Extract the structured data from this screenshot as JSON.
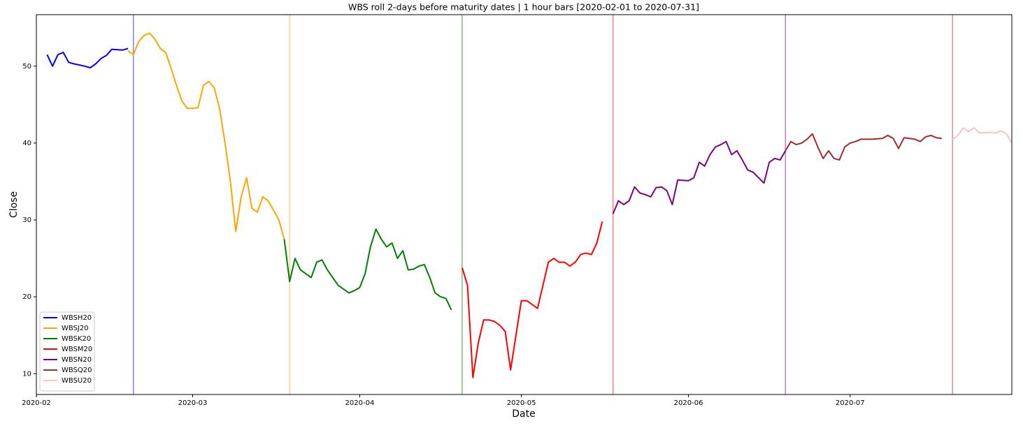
{
  "chart_data": {
    "type": "line",
    "title": "WBS roll 2-days before maturity dates | 1 hour bars [2020-02-01 to 2020-07-31]",
    "x_label": "Date",
    "y_label": "Close",
    "xlim": [
      "2020-02-01",
      "2020-07-31"
    ],
    "ylim": [
      7.3,
      56.7
    ],
    "xticks": [
      {
        "value": "2020-02-01",
        "label": "2020-02"
      },
      {
        "value": "2020-03-01",
        "label": "2020-03"
      },
      {
        "value": "2020-04-01",
        "label": "2020-04"
      },
      {
        "value": "2020-05-01",
        "label": "2020-05"
      },
      {
        "value": "2020-06-01",
        "label": "2020-06"
      },
      {
        "value": "2020-07-01",
        "label": "2020-07"
      }
    ],
    "yticks": [
      10,
      20,
      30,
      40,
      50
    ],
    "grid": false,
    "legend": "lower left",
    "roll_lines": [
      {
        "x": "2020-02-19",
        "color": "blue"
      },
      {
        "x": "2020-03-19",
        "color": "orange"
      },
      {
        "x": "2020-04-20",
        "color": "green"
      },
      {
        "x": "2020-05-18",
        "color": "red"
      },
      {
        "x": "2020-06-19",
        "color": "purple"
      },
      {
        "x": "2020-07-20",
        "color": "brown"
      }
    ],
    "series": [
      {
        "name": "WBSH20",
        "color": "#0000ff",
        "x": [
          "2020-02-03",
          "2020-02-04",
          "2020-02-05",
          "2020-02-06",
          "2020-02-07",
          "2020-02-08",
          "2020-02-10",
          "2020-02-11",
          "2020-02-12",
          "2020-02-13",
          "2020-02-14",
          "2020-02-15",
          "2020-02-17",
          "2020-02-18"
        ],
        "values": [
          51.5,
          50.0,
          51.5,
          51.8,
          50.5,
          50.3,
          50.0,
          49.8,
          50.3,
          51.0,
          51.4,
          52.2,
          52.1,
          52.3
        ]
      },
      {
        "name": "WBSJ20",
        "color": "#ffa500",
        "x": [
          "2020-02-18",
          "2020-02-19",
          "2020-02-20",
          "2020-02-21",
          "2020-02-22",
          "2020-02-23",
          "2020-02-24",
          "2020-02-25",
          "2020-02-26",
          "2020-02-27",
          "2020-02-28",
          "2020-02-29",
          "2020-03-01",
          "2020-03-02",
          "2020-03-03",
          "2020-03-04",
          "2020-03-05",
          "2020-03-06",
          "2020-03-07",
          "2020-03-08",
          "2020-03-09",
          "2020-03-10",
          "2020-03-11",
          "2020-03-12",
          "2020-03-13",
          "2020-03-14",
          "2020-03-15",
          "2020-03-16",
          "2020-03-17",
          "2020-03-18"
        ],
        "values": [
          52.0,
          51.5,
          53.2,
          54.0,
          54.3,
          53.5,
          52.3,
          51.8,
          49.7,
          47.5,
          45.5,
          44.5,
          44.5,
          44.6,
          47.5,
          48.0,
          47.2,
          44.5,
          40.0,
          35.0,
          28.5,
          33.0,
          35.5,
          31.5,
          31.0,
          33.0,
          32.5,
          31.3,
          30.0,
          27.5
        ]
      },
      {
        "name": "WBSK20",
        "color": "#008000",
        "x": [
          "2020-03-18",
          "2020-03-19",
          "2020-03-20",
          "2020-03-21",
          "2020-03-22",
          "2020-03-23",
          "2020-03-24",
          "2020-03-25",
          "2020-03-26",
          "2020-03-27",
          "2020-03-28",
          "2020-03-29",
          "2020-03-30",
          "2020-03-31",
          "2020-04-01",
          "2020-04-02",
          "2020-04-03",
          "2020-04-04",
          "2020-04-05",
          "2020-04-06",
          "2020-04-07",
          "2020-04-08",
          "2020-04-09",
          "2020-04-10",
          "2020-04-11",
          "2020-04-12",
          "2020-04-13",
          "2020-04-14",
          "2020-04-15",
          "2020-04-16",
          "2020-04-17",
          "2020-04-18"
        ],
        "values": [
          27.5,
          22.0,
          25.0,
          23.5,
          23.0,
          22.5,
          24.5,
          24.8,
          23.5,
          22.5,
          21.5,
          21.0,
          20.5,
          20.8,
          21.2,
          23.0,
          26.5,
          28.8,
          27.5,
          26.5,
          27.0,
          25.0,
          26.0,
          23.5,
          23.6,
          24.0,
          24.2,
          22.5,
          20.5,
          20.0,
          19.8,
          18.3
        ]
      },
      {
        "name": "WBSM20",
        "color": "#ff0000",
        "x": [
          "2020-04-20",
          "2020-04-21",
          "2020-04-22",
          "2020-04-23",
          "2020-04-24",
          "2020-04-25",
          "2020-04-26",
          "2020-04-27",
          "2020-04-28",
          "2020-04-29",
          "2020-04-30",
          "2020-05-01",
          "2020-05-02",
          "2020-05-03",
          "2020-05-04",
          "2020-05-05",
          "2020-05-06",
          "2020-05-07",
          "2020-05-08",
          "2020-05-09",
          "2020-05-10",
          "2020-05-11",
          "2020-05-12",
          "2020-05-13",
          "2020-05-14",
          "2020-05-15",
          "2020-05-16"
        ],
        "values": [
          23.8,
          21.5,
          9.5,
          14.0,
          17.0,
          17.0,
          16.8,
          16.3,
          15.5,
          10.5,
          15.0,
          19.5,
          19.5,
          19.0,
          18.5,
          21.5,
          24.5,
          25.0,
          24.5,
          24.5,
          24.0,
          24.5,
          25.5,
          25.7,
          25.5,
          27.0,
          29.8
        ]
      },
      {
        "name": "WBSN20",
        "color": "#800080",
        "x": [
          "2020-05-18",
          "2020-05-19",
          "2020-05-20",
          "2020-05-21",
          "2020-05-22",
          "2020-05-23",
          "2020-05-24",
          "2020-05-25",
          "2020-05-26",
          "2020-05-27",
          "2020-05-28",
          "2020-05-29",
          "2020-05-30",
          "2020-06-01",
          "2020-06-02",
          "2020-06-03",
          "2020-06-04",
          "2020-06-05",
          "2020-06-06",
          "2020-06-07",
          "2020-06-08",
          "2020-06-09",
          "2020-06-10",
          "2020-06-11",
          "2020-06-12",
          "2020-06-13",
          "2020-06-14",
          "2020-06-15",
          "2020-06-16",
          "2020-06-17",
          "2020-06-18",
          "2020-06-19"
        ],
        "values": [
          30.8,
          32.5,
          32.0,
          32.5,
          34.3,
          33.5,
          33.3,
          33.0,
          34.2,
          34.3,
          33.8,
          32.0,
          35.2,
          35.1,
          35.5,
          37.5,
          37.0,
          38.5,
          39.5,
          39.8,
          40.2,
          38.5,
          39.0,
          37.8,
          36.5,
          36.2,
          35.5,
          34.8,
          37.5,
          38.0,
          37.8,
          39.0
        ]
      },
      {
        "name": "WBSQ20",
        "color": "#a52a2a",
        "x": [
          "2020-06-19",
          "2020-06-20",
          "2020-06-21",
          "2020-06-22",
          "2020-06-23",
          "2020-06-24",
          "2020-06-25",
          "2020-06-26",
          "2020-06-27",
          "2020-06-28",
          "2020-06-29",
          "2020-06-30",
          "2020-07-01",
          "2020-07-02",
          "2020-07-03",
          "2020-07-05",
          "2020-07-07",
          "2020-07-08",
          "2020-07-09",
          "2020-07-10",
          "2020-07-11",
          "2020-07-12",
          "2020-07-13",
          "2020-07-14",
          "2020-07-15",
          "2020-07-16",
          "2020-07-17",
          "2020-07-18"
        ],
        "values": [
          39.0,
          40.2,
          39.8,
          40.0,
          40.5,
          41.2,
          39.5,
          38.0,
          39.0,
          38.0,
          37.8,
          39.5,
          40.0,
          40.2,
          40.5,
          40.5,
          40.6,
          41.0,
          40.6,
          39.3,
          40.7,
          40.6,
          40.5,
          40.2,
          40.8,
          41.0,
          40.7,
          40.6
        ]
      },
      {
        "name": "WBSU20",
        "color": "#ffc0cb",
        "x": [
          "2020-07-20",
          "2020-07-21",
          "2020-07-22",
          "2020-07-23",
          "2020-07-24",
          "2020-07-25",
          "2020-07-27",
          "2020-07-28",
          "2020-07-29",
          "2020-07-30",
          "2020-07-31"
        ],
        "values": [
          40.5,
          41.0,
          42.0,
          41.5,
          42.0,
          41.3,
          41.4,
          41.3,
          41.6,
          41.2,
          40.0
        ]
      }
    ]
  }
}
